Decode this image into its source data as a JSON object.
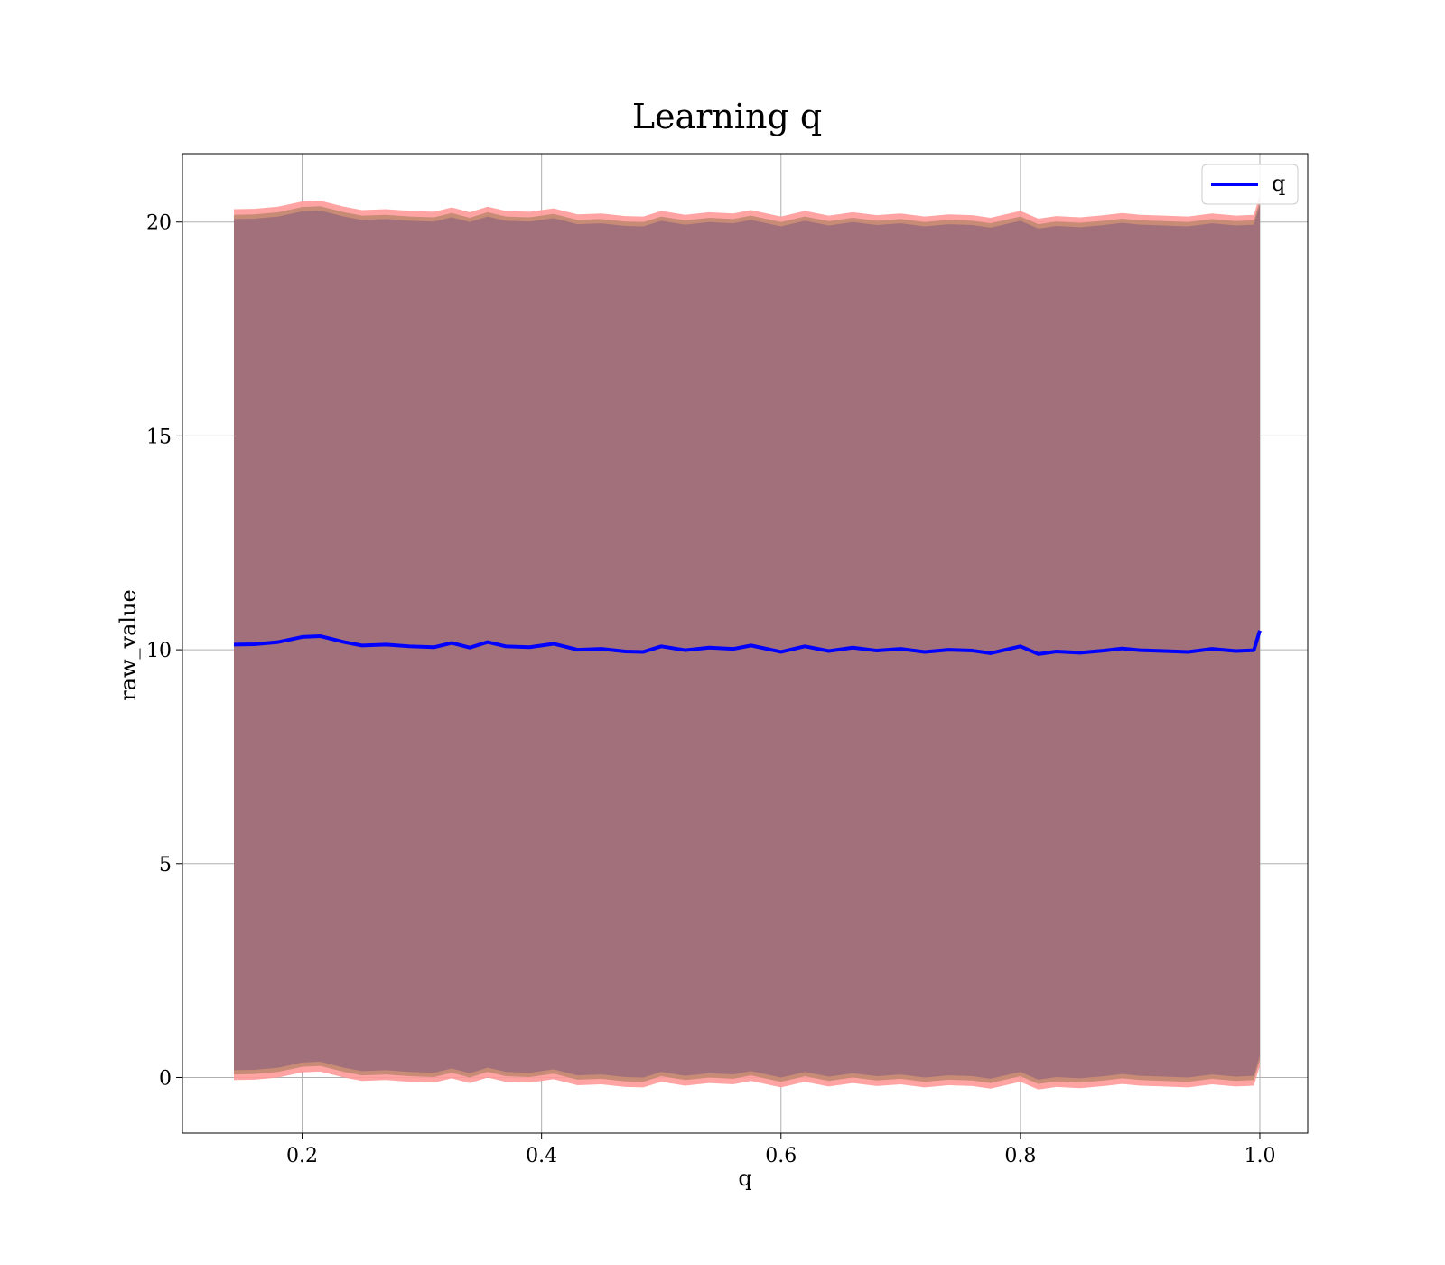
{
  "chart_data": {
    "type": "line",
    "title": "Learning q",
    "xlabel": "q",
    "ylabel": "raw_value",
    "xlim": [
      0.1,
      1.04
    ],
    "ylim": [
      -1.3,
      21.6
    ],
    "xticks": [
      0.2,
      0.4,
      0.6,
      0.8,
      1.0
    ],
    "xtick_labels": [
      "0.2",
      "0.4",
      "0.6",
      "0.8",
      "1.0"
    ],
    "yticks": [
      0,
      5,
      10,
      15,
      20
    ],
    "ytick_labels": [
      "0",
      "5",
      "10",
      "15",
      "20"
    ],
    "grid": true,
    "legend": {
      "position": "top-right",
      "entries": [
        "q"
      ]
    },
    "bands": {
      "inner_color": "#a1707a",
      "mid_color": "#c48a74",
      "outer_color": "#ff9999",
      "inner_half_width": 9.95,
      "mid_half_width": 10.05,
      "outer_half_width": 10.18
    },
    "series": [
      {
        "name": "q",
        "color": "#0000ff",
        "x": [
          0.143,
          0.16,
          0.18,
          0.2,
          0.215,
          0.235,
          0.25,
          0.27,
          0.29,
          0.31,
          0.325,
          0.34,
          0.355,
          0.37,
          0.39,
          0.41,
          0.43,
          0.45,
          0.47,
          0.485,
          0.5,
          0.52,
          0.54,
          0.56,
          0.575,
          0.6,
          0.62,
          0.64,
          0.66,
          0.68,
          0.7,
          0.72,
          0.74,
          0.76,
          0.775,
          0.8,
          0.815,
          0.83,
          0.85,
          0.87,
          0.885,
          0.9,
          0.92,
          0.94,
          0.96,
          0.98,
          0.995,
          1.0
        ],
        "values": [
          10.12,
          10.13,
          10.18,
          10.3,
          10.32,
          10.18,
          10.1,
          10.12,
          10.08,
          10.06,
          10.16,
          10.05,
          10.18,
          10.08,
          10.06,
          10.14,
          10.0,
          10.02,
          9.96,
          9.95,
          10.08,
          9.99,
          10.05,
          10.02,
          10.1,
          9.95,
          10.08,
          9.97,
          10.05,
          9.98,
          10.02,
          9.95,
          10.0,
          9.98,
          9.92,
          10.08,
          9.9,
          9.96,
          9.93,
          9.98,
          10.03,
          9.99,
          9.97,
          9.95,
          10.02,
          9.97,
          9.99,
          10.45
        ]
      }
    ]
  }
}
